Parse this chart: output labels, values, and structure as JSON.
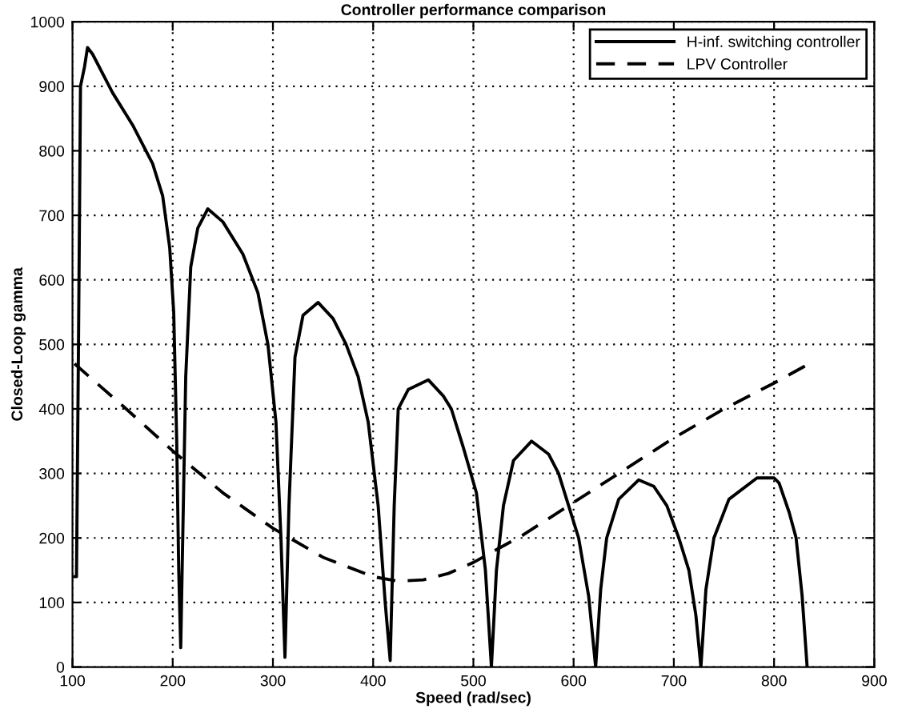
{
  "chart_data": {
    "type": "line",
    "title": "Controller performance comparison",
    "xlabel": "Speed (rad/sec)",
    "ylabel": "Closed-Loop gamma",
    "xlim": [
      100,
      900
    ],
    "ylim": [
      0,
      1000
    ],
    "xticks": [
      100,
      200,
      300,
      400,
      500,
      600,
      700,
      800,
      900
    ],
    "yticks": [
      0,
      100,
      200,
      300,
      400,
      500,
      600,
      700,
      800,
      900,
      1000
    ],
    "grid": true,
    "legend": "top right",
    "series": [
      {
        "name": "H-inf. switching controller",
        "color": "#000000",
        "line_style": "solid",
        "x": [
          102,
          104,
          106,
          108,
          112,
          115,
          120,
          140,
          160,
          180,
          190,
          197,
          201,
          204,
          206,
          208,
          210,
          213,
          218,
          225,
          235,
          250,
          270,
          285,
          295,
          303,
          308,
          312,
          316,
          322,
          330,
          345,
          360,
          373,
          385,
          395,
          405,
          412,
          417,
          421,
          425,
          435,
          455,
          470,
          478,
          490,
          503,
          512,
          518,
          523,
          530,
          540,
          558,
          575,
          585,
          595,
          605,
          615,
          622,
          627,
          633,
          645,
          665,
          680,
          693,
          705,
          715,
          722,
          727,
          732,
          740,
          755,
          783,
          800,
          805,
          815,
          822,
          828,
          833
        ],
        "values": [
          140,
          140,
          500,
          900,
          930,
          960,
          950,
          890,
          840,
          780,
          730,
          650,
          550,
          350,
          150,
          30,
          200,
          450,
          620,
          680,
          710,
          690,
          640,
          580,
          500,
          380,
          200,
          15,
          250,
          480,
          545,
          565,
          540,
          500,
          450,
          380,
          250,
          100,
          10,
          250,
          400,
          430,
          445,
          420,
          400,
          340,
          270,
          150,
          0,
          150,
          250,
          320,
          350,
          330,
          300,
          250,
          200,
          110,
          0,
          120,
          200,
          260,
          290,
          280,
          250,
          200,
          150,
          80,
          0,
          120,
          200,
          260,
          293,
          293,
          285,
          240,
          200,
          110,
          0
        ]
      },
      {
        "name": "LPV Controller",
        "color": "#000000",
        "line_style": "dashed",
        "x": [
          102,
          150,
          200,
          250,
          300,
          350,
          400,
          425,
          450,
          475,
          500,
          550,
          600,
          650,
          700,
          750,
          800,
          835
        ],
        "values": [
          470,
          405,
          335,
          270,
          215,
          170,
          140,
          133,
          135,
          145,
          162,
          205,
          255,
          305,
          355,
          400,
          440,
          470
        ]
      }
    ]
  }
}
